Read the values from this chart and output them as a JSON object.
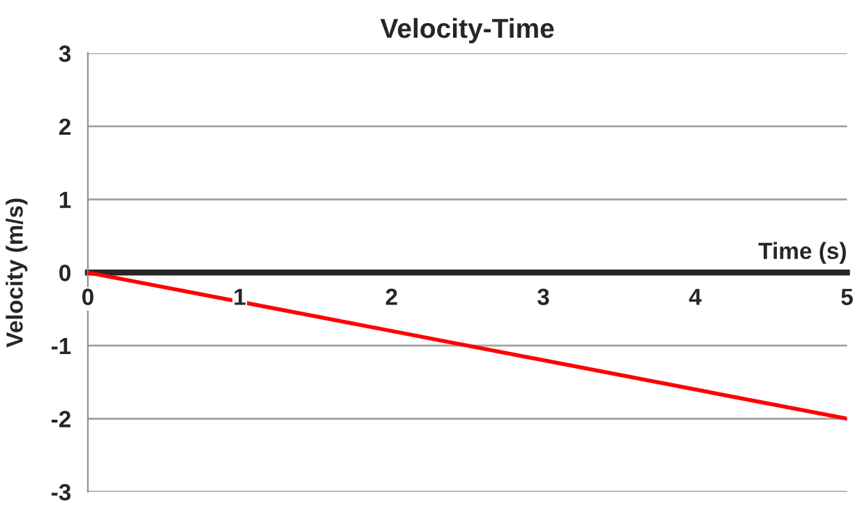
{
  "chart_data": {
    "type": "line",
    "title": "Velocity-Time",
    "xlabel": "Time (s)",
    "ylabel": "Velocity (m/s)",
    "x": [
      0,
      5
    ],
    "series": [
      {
        "color": "#ff0000",
        "values": [
          0,
          -2
        ]
      }
    ],
    "xlim": [
      0,
      5
    ],
    "xticks": [
      0,
      1,
      2,
      3,
      4,
      5
    ],
    "ylim": [
      -3,
      3
    ],
    "yticks": [
      -3,
      -2,
      -1,
      0,
      1,
      2,
      3
    ],
    "grid": "y",
    "marker": "none",
    "line_style": "solid"
  }
}
